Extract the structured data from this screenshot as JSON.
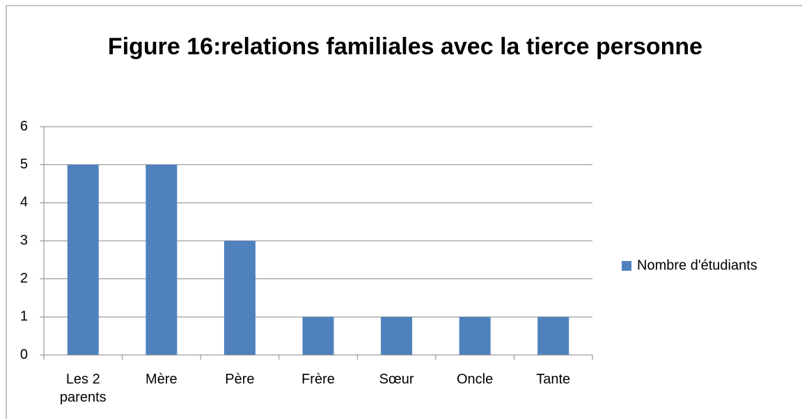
{
  "chart_data": {
    "type": "bar",
    "title": "Figure 16:relations familiales avec la tierce personne",
    "categories": [
      "Les 2 parents",
      "Mère",
      "Père",
      "Frère",
      "Sœur",
      "Oncle",
      "Tante"
    ],
    "series": [
      {
        "name": "Nombre d'étudiants",
        "color": "#4f81bd",
        "values": [
          5,
          5,
          3,
          1,
          1,
          1,
          1
        ]
      }
    ],
    "ylim": [
      0,
      6
    ],
    "yticks": [
      0,
      1,
      2,
      3,
      4,
      5,
      6
    ],
    "grid": true,
    "legend": "right"
  }
}
